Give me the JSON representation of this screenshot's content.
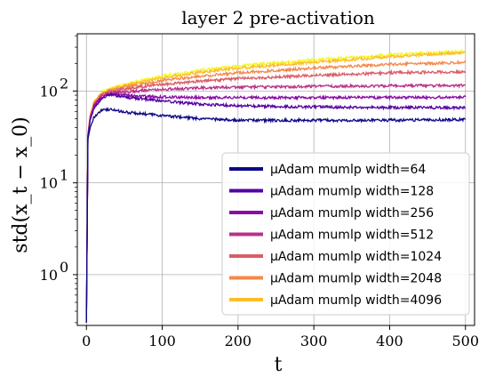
{
  "chart_data": {
    "type": "line",
    "title": "layer 2 pre-activation",
    "xlabel": "t",
    "ylabel": "std(x_t − x_0)",
    "x_scale": "linear",
    "y_scale": "log",
    "xlim": [
      -12,
      512
    ],
    "ylim": [
      0.28,
      420
    ],
    "x_ticks": [
      0,
      100,
      200,
      300,
      400,
      500
    ],
    "x_tick_labels": [
      "0",
      "100",
      "200",
      "300",
      "400",
      "500"
    ],
    "y_ticks": [
      1,
      10,
      100
    ],
    "y_tick_labels": [
      "10",
      "10",
      "10"
    ],
    "y_tick_exponents": [
      "0",
      "1",
      "2"
    ],
    "grid": true,
    "legend_placement": "lower-right",
    "series": [
      {
        "name": "μAdam mumlp width=64",
        "color": "#0d0887",
        "x": [
          0,
          2,
          5,
          10,
          20,
          30,
          50,
          100,
          150,
          200,
          300,
          400,
          500
        ],
        "y": [
          0.3,
          30,
          40,
          52,
          62,
          63,
          59,
          54,
          50,
          48,
          48,
          48,
          49
        ]
      },
      {
        "name": "μAdam mumlp width=128",
        "color": "#5302a3",
        "x": [
          0,
          2,
          5,
          10,
          20,
          30,
          50,
          100,
          150,
          200,
          300,
          400,
          500
        ],
        "y": [
          0.3,
          32,
          48,
          65,
          82,
          92,
          86,
          78,
          72,
          69,
          67,
          66,
          66
        ]
      },
      {
        "name": "μAdam mumlp width=256",
        "color": "#8b0aa5",
        "x": [
          0,
          2,
          5,
          10,
          20,
          30,
          50,
          100,
          150,
          200,
          300,
          400,
          500
        ],
        "y": [
          0.3,
          32,
          50,
          68,
          85,
          92,
          90,
          86,
          85,
          85,
          85,
          85,
          86
        ]
      },
      {
        "name": "μAdam mumlp width=512",
        "color": "#b83289",
        "x": [
          0,
          2,
          5,
          10,
          20,
          30,
          50,
          100,
          150,
          200,
          300,
          400,
          500
        ],
        "y": [
          0.3,
          33,
          52,
          70,
          88,
          95,
          98,
          104,
          108,
          110,
          112,
          114,
          115
        ]
      },
      {
        "name": "μAdam mumlp width=1024",
        "color": "#db5c68",
        "x": [
          0,
          2,
          5,
          10,
          20,
          30,
          50,
          100,
          150,
          200,
          300,
          400,
          500
        ],
        "y": [
          0.3,
          33,
          53,
          72,
          90,
          98,
          105,
          118,
          128,
          136,
          148,
          158,
          162
        ]
      },
      {
        "name": "μAdam mumlp width=2048",
        "color": "#f48849",
        "x": [
          0,
          2,
          5,
          10,
          20,
          30,
          50,
          100,
          150,
          200,
          300,
          400,
          500
        ],
        "y": [
          0.3,
          34,
          54,
          74,
          92,
          100,
          110,
          130,
          145,
          158,
          178,
          195,
          205
        ]
      },
      {
        "name": "μAdam mumlp width=4096",
        "color": "#febc2a",
        "x": [
          0,
          2,
          5,
          10,
          20,
          30,
          50,
          100,
          150,
          200,
          300,
          400,
          500
        ],
        "y": [
          0.3,
          34,
          55,
          75,
          95,
          103,
          115,
          140,
          160,
          178,
          205,
          235,
          265
        ]
      },
      {
        "name": "",
        "color": "#f0f921",
        "x": [
          0,
          2,
          5,
          10,
          20,
          30,
          50,
          100,
          150,
          200,
          300,
          400,
          500
        ],
        "y": [
          0.3,
          34,
          55,
          76,
          96,
          105,
          118,
          145,
          168,
          188,
          218,
          248,
          272
        ]
      }
    ]
  }
}
